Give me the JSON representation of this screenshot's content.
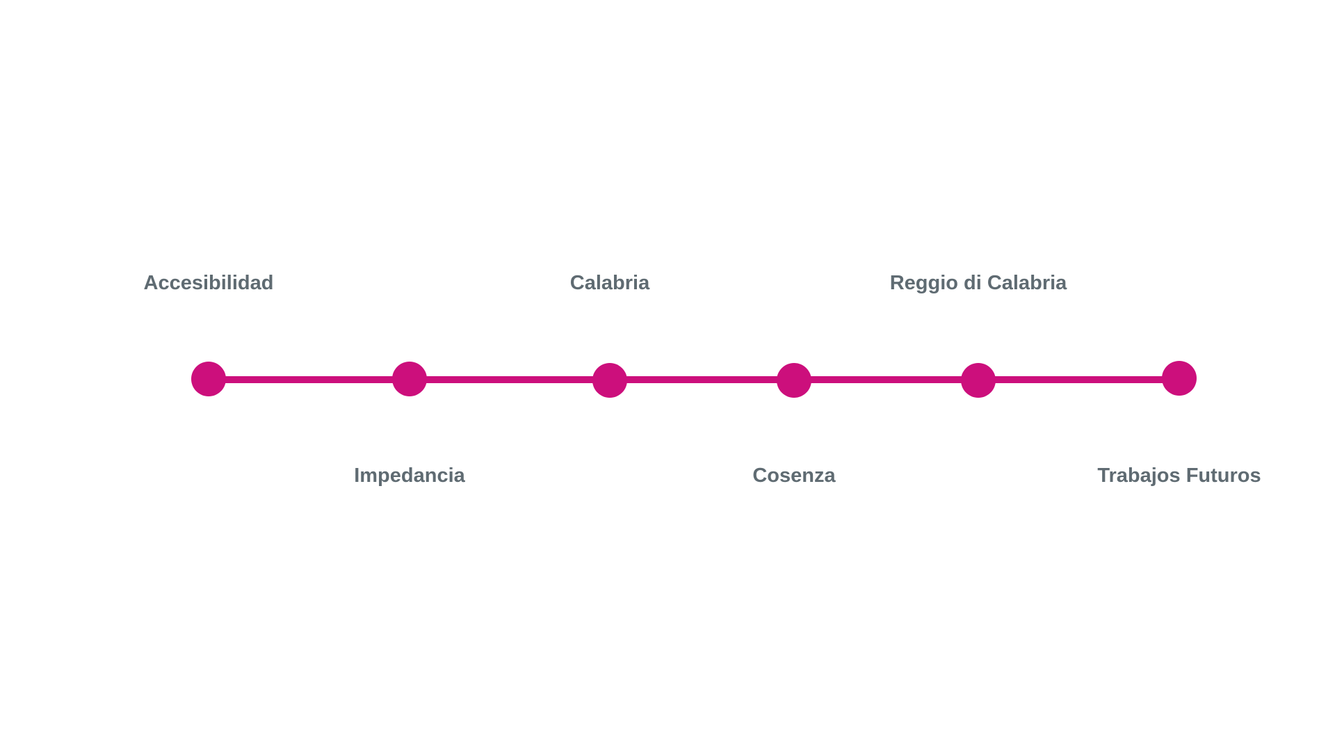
{
  "colors": {
    "accent": "#cc0f7c",
    "label": "#5f6b72",
    "background": "#ffffff"
  },
  "timeline": {
    "steps": [
      {
        "label": "Accesibilidad",
        "label_side": "above"
      },
      {
        "label": "Impedancia",
        "label_side": "below"
      },
      {
        "label": "Calabria",
        "label_side": "above"
      },
      {
        "label": "Cosenza",
        "label_side": "below"
      },
      {
        "label": "Reggio di Calabria",
        "label_side": "above"
      },
      {
        "label": "Trabajos Futuros",
        "label_side": "below"
      }
    ]
  }
}
